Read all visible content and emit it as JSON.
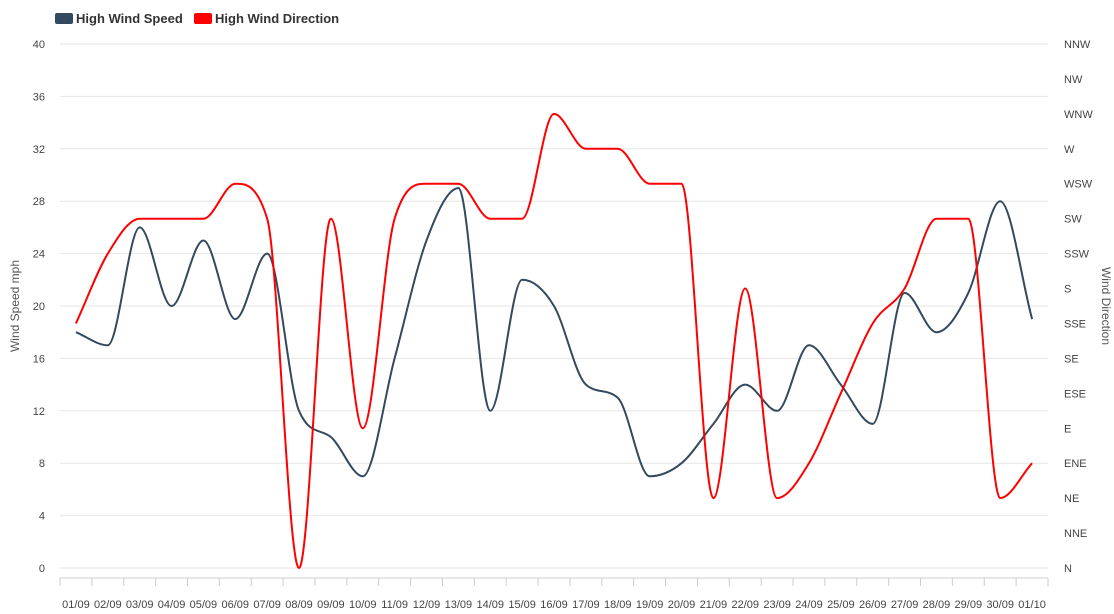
{
  "legend": {
    "speed_label": "High Wind Speed",
    "direction_label": "High Wind Direction"
  },
  "axes": {
    "left_title": "Wind Speed mph",
    "right_title": "Wind Direction"
  },
  "colors": {
    "speed": "#34495e",
    "direction": "#ff0000",
    "grid": "#e6e6e6",
    "axis_text": "#444444"
  },
  "chart_data": {
    "type": "line",
    "title": "",
    "xlabel": "",
    "ylabel": "Wind Speed mph",
    "y2label": "Wind Direction",
    "ylim": [
      0,
      40
    ],
    "yticks": [
      0,
      4,
      8,
      12,
      16,
      20,
      24,
      28,
      32,
      36,
      40
    ],
    "y2_categories": [
      "N",
      "NNE",
      "NE",
      "ENE",
      "E",
      "ESE",
      "SE",
      "SSE",
      "S",
      "SSW",
      "SW",
      "WSW",
      "W",
      "WNW",
      "NW",
      "NNW"
    ],
    "categories": [
      "01/09",
      "02/09",
      "03/09",
      "04/09",
      "05/09",
      "06/09",
      "07/09",
      "08/09",
      "09/09",
      "10/09",
      "11/09",
      "12/09",
      "13/09",
      "14/09",
      "15/09",
      "16/09",
      "17/09",
      "18/09",
      "19/09",
      "20/09",
      "21/09",
      "22/09",
      "23/09",
      "24/09",
      "25/09",
      "26/09",
      "27/09",
      "28/09",
      "29/09",
      "30/09",
      "01/10"
    ],
    "x_tick_labels": [
      "01/09",
      "02/09",
      "03/09",
      "04/09",
      "05/09",
      "06/09",
      "07/09",
      "08/09",
      "09/09",
      "10/09",
      "11/09",
      "12/09",
      "13/09",
      "14/09",
      "15/09",
      "16/09",
      "17/09",
      "18/09",
      "19/09",
      "20/09",
      "21/09",
      "22/09",
      "23/09",
      "24/09",
      "25/09",
      "26/09",
      "27/09",
      "28/09",
      "29/09",
      "30/09",
      "01/10"
    ],
    "series": [
      {
        "name": "High Wind Speed",
        "axis": "left",
        "values": [
          18,
          17,
          26,
          20,
          25,
          19,
          24,
          12,
          10,
          7,
          16,
          25,
          29,
          12,
          22,
          20,
          14,
          13,
          7,
          8,
          11,
          14,
          12,
          17,
          14,
          11,
          21,
          18,
          21,
          28,
          19
        ]
      },
      {
        "name": "High Wind Direction",
        "axis": "right",
        "values": [
          "SSE",
          "SSW",
          "SW",
          "SW",
          "SW",
          "WSW",
          "SW",
          "N",
          "SW",
          "E",
          "SW",
          "WSW",
          "WSW",
          "SW",
          "SW",
          "WNW",
          "W",
          "W",
          "WSW",
          "WSW",
          "NE",
          "S",
          "NE",
          "ENE",
          "ESE",
          "SSE",
          "S",
          "SW",
          "SW",
          "NE",
          "ENE"
        ]
      }
    ]
  }
}
